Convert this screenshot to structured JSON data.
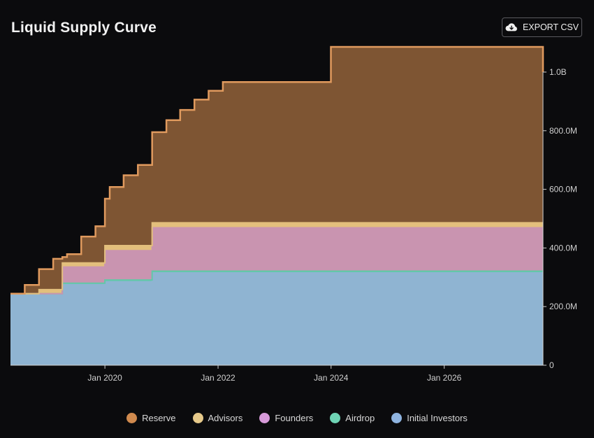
{
  "header": {
    "title": "Liquid Supply Curve",
    "export_label": "EXPORT CSV",
    "export_icon": "cloud-download-icon"
  },
  "chart_data": {
    "type": "area",
    "stacked": true,
    "step": true,
    "title": "Liquid Supply Curve",
    "xlabel": "",
    "ylabel": "",
    "xlim": [
      "2018-05-01",
      "2027-10-01"
    ],
    "ylim": [
      0,
      1000000000
    ],
    "x_ticks": [
      "2020-01-01",
      "2022-01-01",
      "2024-01-01",
      "2026-01-01"
    ],
    "x_tick_labels": [
      "Jan 2020",
      "Jan 2022",
      "Jan 2024",
      "Jan 2026"
    ],
    "y_ticks": [
      0,
      200000000,
      400000000,
      600000000,
      800000000,
      1000000000
    ],
    "y_tick_labels": [
      "0",
      "200.0M",
      "400.0M",
      "600.0M",
      "800.0M",
      "1.0B"
    ],
    "grid": false,
    "legend_position": "bottom",
    "x": [
      "2018-05-01",
      "2018-08-01",
      "2018-11-01",
      "2019-02-01",
      "2019-04-01",
      "2019-05-01",
      "2019-08-01",
      "2019-11-01",
      "2020-01-01",
      "2020-02-01",
      "2020-05-01",
      "2020-08-01",
      "2020-11-01",
      "2021-02-01",
      "2021-05-01",
      "2021-08-01",
      "2021-11-01",
      "2022-02-01",
      "2023-12-31",
      "2027-10-01"
    ],
    "series": [
      {
        "name": "Initial Investors",
        "color": "#8fb4d2",
        "values": [
          240000000,
          240000000,
          240000000,
          240000000,
          275000000,
          275000000,
          275000000,
          275000000,
          285000000,
          285000000,
          285000000,
          285000000,
          315000000,
          315000000,
          315000000,
          315000000,
          315000000,
          315000000,
          315000000,
          315000000
        ]
      },
      {
        "name": "Airdrop",
        "color": "#63c7a8",
        "values": [
          4000000,
          4000000,
          4000000,
          4000000,
          5000000,
          5000000,
          5000000,
          5000000,
          6000000,
          6000000,
          6000000,
          6000000,
          6000000,
          6000000,
          6000000,
          6000000,
          6000000,
          6000000,
          6000000,
          6000000
        ]
      },
      {
        "name": "Founders",
        "color": "#c994b0",
        "values": [
          0,
          0,
          0,
          0,
          55000000,
          55000000,
          55000000,
          55000000,
          100000000,
          100000000,
          100000000,
          100000000,
          148000000,
          148000000,
          148000000,
          148000000,
          148000000,
          148000000,
          148000000,
          148000000
        ]
      },
      {
        "name": "Advisors",
        "color": "#e3bf7c",
        "values": [
          0,
          0,
          14000000,
          14000000,
          14000000,
          14000000,
          14000000,
          14000000,
          17000000,
          17000000,
          17000000,
          17000000,
          17000000,
          17000000,
          17000000,
          17000000,
          17000000,
          17000000,
          17000000,
          17000000
        ]
      },
      {
        "name": "Reserve",
        "color": "#7e5533",
        "line_color": "#e09a5e",
        "values": [
          0,
          30000000,
          70000000,
          105000000,
          20000000,
          30000000,
          90000000,
          125000000,
          160000000,
          200000000,
          240000000,
          275000000,
          309000000,
          350000000,
          385000000,
          420000000,
          450000000,
          480000000,
          600000000,
          514000000
        ]
      }
    ]
  },
  "legend": [
    {
      "label": "Reserve",
      "color": "#d08a4e"
    },
    {
      "label": "Advisors",
      "color": "#e6c98a"
    },
    {
      "label": "Founders",
      "color": "#d79ad9"
    },
    {
      "label": "Airdrop",
      "color": "#6ed3b4"
    },
    {
      "label": "Initial Investors",
      "color": "#8fb4e0"
    }
  ]
}
